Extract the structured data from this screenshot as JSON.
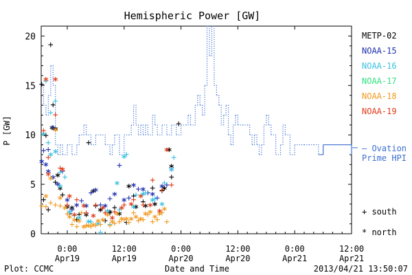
{
  "chart_data": {
    "type": "scatter",
    "title": "Hemispheric Power [GW]",
    "ylabel": "P [GW]",
    "xlabel": "Date and Time",
    "ylim": [
      0,
      21
    ],
    "yticks": [
      0,
      5,
      10,
      15,
      20
    ],
    "x_unit": "hours since 2013-04-18 00:00 UT",
    "xlim": [
      18.5,
      84
    ],
    "xticks": [
      {
        "x": 24,
        "time": "0:00",
        "date": "Apr19"
      },
      {
        "x": 36,
        "time": "12:00",
        "date": "Apr19"
      },
      {
        "x": 48,
        "time": "0:00",
        "date": "Apr20"
      },
      {
        "x": 60,
        "time": "12:00",
        "date": "Apr20"
      },
      {
        "x": 72,
        "time": "0:00",
        "date": "Apr21"
      },
      {
        "x": 84,
        "time": "12:00",
        "date": "Apr21"
      }
    ],
    "series": [
      {
        "name": "METP-02",
        "color": "#000000",
        "south": [
          [
            18.6,
            15.2
          ],
          [
            19.5,
            10.0
          ],
          [
            20.5,
            19.2
          ],
          [
            21.0,
            13.1
          ],
          [
            19.0,
            3.5
          ],
          [
            20.0,
            2.5
          ],
          [
            21.5,
            5.3
          ],
          [
            23.0,
            4.0
          ],
          [
            24.5,
            2.1
          ],
          [
            26.5,
            2.0
          ],
          [
            28.5,
            9.3
          ],
          [
            30.0,
            2.9
          ],
          [
            32.0,
            1.4
          ],
          [
            34.0,
            2.7
          ],
          [
            36.5,
            1.2
          ],
          [
            38.0,
            3.9
          ],
          [
            40.0,
            3.3
          ],
          [
            42.0,
            4.7
          ],
          [
            44.0,
            4.4
          ],
          [
            46.0,
            5.8
          ],
          [
            47.5,
            11.2
          ],
          [
            26.0,
            1.5
          ],
          [
            33.0,
            2.2
          ]
        ],
        "north": [
          [
            20.8,
            10.7
          ],
          [
            21.5,
            10.6
          ],
          [
            22.0,
            5.9
          ],
          [
            22.5,
            4.6
          ],
          [
            24.0,
            2.7
          ],
          [
            25.0,
            2.6
          ],
          [
            28.0,
            1.9
          ],
          [
            29.5,
            4.3
          ],
          [
            31.0,
            2.4
          ],
          [
            33.0,
            2.2
          ],
          [
            35.0,
            2.0
          ],
          [
            37.0,
            4.8
          ],
          [
            38.5,
            2.7
          ],
          [
            40.5,
            2.8
          ],
          [
            42.5,
            3.0
          ],
          [
            44.5,
            4.6
          ],
          [
            45.5,
            8.5
          ],
          [
            46.0,
            6.8
          ]
        ]
      },
      {
        "name": "NOAA-15",
        "color": "#1e30b0",
        "south": [
          [
            19.0,
            8.5
          ],
          [
            20.0,
            8.6
          ],
          [
            21.0,
            10.8
          ],
          [
            23.0,
            6.4
          ],
          [
            25.0,
            2.5
          ],
          [
            27.0,
            3.4
          ],
          [
            29.0,
            4.2
          ],
          [
            31.0,
            3.0
          ],
          [
            33.0,
            3.6
          ],
          [
            35.0,
            7.0
          ],
          [
            37.0,
            3.7
          ],
          [
            39.0,
            4.6
          ],
          [
            41.0,
            4.2
          ],
          [
            43.0,
            3.7
          ],
          [
            45.0,
            5.0
          ]
        ],
        "north": [
          [
            18.6,
            7.3
          ],
          [
            19.5,
            7.0
          ],
          [
            20.0,
            6.3
          ],
          [
            21.0,
            5.7
          ],
          [
            22.0,
            5.0
          ],
          [
            24.0,
            3.4
          ],
          [
            26.0,
            2.9
          ],
          [
            28.0,
            2.8
          ],
          [
            30.0,
            4.4
          ],
          [
            32.0,
            2.8
          ],
          [
            34.0,
            4.0
          ],
          [
            36.0,
            3.4
          ],
          [
            38.0,
            4.9
          ],
          [
            40.0,
            4.5
          ],
          [
            42.0,
            4.0
          ],
          [
            44.0,
            4.8
          ],
          [
            46.0,
            6.5
          ]
        ]
      },
      {
        "name": "NOAA-16",
        "color": "#3ac0e0",
        "south": [
          [
            19.5,
            15.5
          ],
          [
            20.5,
            12.3
          ],
          [
            21.5,
            13.5
          ],
          [
            20.0,
            9.3
          ],
          [
            22.5,
            6.3
          ],
          [
            23.5,
            5.8
          ],
          [
            25.5,
            1.9
          ],
          [
            27.5,
            3.0
          ],
          [
            29.0,
            1.3
          ],
          [
            31.0,
            0.2
          ],
          [
            33.0,
            1.0
          ],
          [
            35.0,
            2.5
          ],
          [
            36.5,
            8.1
          ],
          [
            38.5,
            4.0
          ],
          [
            40.5,
            4.2
          ],
          [
            42.5,
            3.6
          ],
          [
            44.5,
            5.2
          ],
          [
            46.5,
            7.8
          ]
        ],
        "north": [
          [
            19.0,
            10.1
          ],
          [
            20.5,
            8.0
          ],
          [
            21.5,
            8.3
          ],
          [
            22.5,
            4.8
          ],
          [
            24.5,
            2.2
          ],
          [
            26.5,
            1.6
          ],
          [
            28.5,
            1.2
          ],
          [
            30.5,
            1.0
          ],
          [
            32.5,
            2.3
          ],
          [
            34.5,
            5.1
          ],
          [
            36.0,
            7.8
          ],
          [
            38.0,
            2.7
          ],
          [
            40.0,
            4.0
          ],
          [
            42.0,
            3.4
          ],
          [
            44.0,
            3.0
          ],
          [
            46.0,
            6.5
          ]
        ]
      },
      {
        "name": "NOAA-17",
        "color": "#30e080",
        "south": [],
        "north": []
      },
      {
        "name": "NOAA-18",
        "color": "#f09a20",
        "south": [
          [
            18.6,
            2.9
          ],
          [
            19.5,
            2.8
          ],
          [
            20.5,
            3.2
          ],
          [
            21.5,
            3.0
          ],
          [
            22.5,
            2.9
          ],
          [
            24.0,
            2.1
          ],
          [
            25.0,
            1.0
          ],
          [
            26.0,
            0.8
          ],
          [
            27.0,
            2.2
          ],
          [
            28.0,
            0.9
          ],
          [
            29.0,
            0.8
          ],
          [
            30.0,
            0.9
          ],
          [
            31.0,
            1.0
          ],
          [
            32.0,
            2.2
          ],
          [
            33.0,
            0.9
          ],
          [
            34.0,
            1.1
          ],
          [
            35.0,
            1.3
          ],
          [
            36.0,
            1.5
          ],
          [
            37.0,
            1.2
          ],
          [
            38.0,
            2.2
          ],
          [
            39.0,
            1.4
          ],
          [
            40.0,
            1.5
          ],
          [
            41.0,
            2.0
          ],
          [
            42.0,
            1.3
          ],
          [
            43.0,
            1.5
          ],
          [
            44.0,
            2.2
          ],
          [
            45.0,
            1.3
          ]
        ],
        "north": [
          [
            19.5,
            3.8
          ],
          [
            20.5,
            5.6
          ],
          [
            21.5,
            10.5
          ],
          [
            22.5,
            3.6
          ],
          [
            23.5,
            2.6
          ],
          [
            24.5,
            1.7
          ],
          [
            25.5,
            1.4
          ],
          [
            26.5,
            1.3
          ],
          [
            27.5,
            0.7
          ],
          [
            28.5,
            0.8
          ],
          [
            29.5,
            0.9
          ],
          [
            30.5,
            1.3
          ],
          [
            31.5,
            1.4
          ],
          [
            32.5,
            1.9
          ],
          [
            33.5,
            1.2
          ],
          [
            34.5,
            2.0
          ],
          [
            35.5,
            1.5
          ],
          [
            36.5,
            1.5
          ],
          [
            37.5,
            1.5
          ],
          [
            38.5,
            1.7
          ],
          [
            39.5,
            1.5
          ],
          [
            40.5,
            2.0
          ],
          [
            41.5,
            2.2
          ],
          [
            42.5,
            1.7
          ],
          [
            43.5,
            2.0
          ],
          [
            44.5,
            2.5
          ]
        ]
      },
      {
        "name": "NOAA-19",
        "color": "#e03a18",
        "south": [
          [
            19.0,
            10.5
          ],
          [
            20.0,
            7.8
          ],
          [
            21.5,
            12.1
          ],
          [
            22.5,
            6.7
          ],
          [
            24.0,
            3.0
          ],
          [
            26.0,
            3.5
          ],
          [
            28.0,
            2.2
          ],
          [
            30.0,
            3.0
          ],
          [
            32.0,
            2.2
          ],
          [
            34.0,
            2.3
          ],
          [
            36.0,
            3.0
          ],
          [
            38.0,
            3.5
          ],
          [
            40.0,
            3.0
          ],
          [
            42.0,
            5.5
          ],
          [
            44.0,
            4.5
          ],
          [
            46.0,
            5.0
          ]
        ],
        "north": [
          [
            19.5,
            15.6
          ],
          [
            20.0,
            6.0
          ],
          [
            21.5,
            15.6
          ],
          [
            23.0,
            6.5
          ],
          [
            24.5,
            3.8
          ],
          [
            25.5,
            1.9
          ],
          [
            27.5,
            2.8
          ],
          [
            29.5,
            1.8
          ],
          [
            31.5,
            2.6
          ],
          [
            33.5,
            1.6
          ],
          [
            35.5,
            2.6
          ],
          [
            37.5,
            3.0
          ],
          [
            39.5,
            3.8
          ],
          [
            41.5,
            2.9
          ],
          [
            43.5,
            2.3
          ],
          [
            45.0,
            8.5
          ]
        ]
      }
    ],
    "ovation": {
      "name": "Ovation Prime HPI",
      "color": "#3a6ed0",
      "legend_text_1": "– Ovation",
      "legend_text_2": "Prime HPI",
      "dotted_until": 77,
      "steps": [
        [
          18.5,
          15
        ],
        [
          19,
          13
        ],
        [
          19.5,
          12
        ],
        [
          20,
          14
        ],
        [
          20.5,
          17
        ],
        [
          21,
          15
        ],
        [
          21.5,
          9
        ],
        [
          22,
          8
        ],
        [
          22.5,
          9
        ],
        [
          23,
          8
        ],
        [
          24,
          9
        ],
        [
          25,
          8
        ],
        [
          26,
          9
        ],
        [
          26.5,
          10
        ],
        [
          27,
          10
        ],
        [
          27.5,
          11
        ],
        [
          28,
          10
        ],
        [
          29,
          9
        ],
        [
          30,
          10
        ],
        [
          31,
          10
        ],
        [
          32,
          9
        ],
        [
          33,
          8
        ],
        [
          33.5,
          9
        ],
        [
          34,
          10
        ],
        [
          35,
          8
        ],
        [
          36,
          10
        ],
        [
          37,
          10
        ],
        [
          37.5,
          11
        ],
        [
          38,
          13
        ],
        [
          38.5,
          11
        ],
        [
          39,
          10
        ],
        [
          39.5,
          11
        ],
        [
          40,
          10
        ],
        [
          40.5,
          11
        ],
        [
          41,
          10
        ],
        [
          42,
          12
        ],
        [
          42.5,
          11
        ],
        [
          43,
          10
        ],
        [
          44,
          11
        ],
        [
          45,
          10
        ],
        [
          46,
          11
        ],
        [
          47,
          10
        ],
        [
          48,
          11
        ],
        [
          49,
          11
        ],
        [
          49.5,
          12
        ],
        [
          50,
          11
        ],
        [
          51,
          13
        ],
        [
          51.5,
          14
        ],
        [
          52,
          13
        ],
        [
          52.5,
          12
        ],
        [
          53,
          15
        ],
        [
          53.5,
          21
        ],
        [
          54,
          18
        ],
        [
          54.5,
          21
        ],
        [
          55,
          15
        ],
        [
          55.5,
          14
        ],
        [
          56,
          13
        ],
        [
          56.5,
          11
        ],
        [
          57,
          12
        ],
        [
          57.5,
          13
        ],
        [
          58,
          10
        ],
        [
          58.5,
          9
        ],
        [
          59,
          11
        ],
        [
          59.5,
          12
        ],
        [
          60,
          11
        ],
        [
          61,
          11
        ],
        [
          62,
          11
        ],
        [
          62.5,
          10
        ],
        [
          63,
          9
        ],
        [
          63.5,
          10
        ],
        [
          64,
          9
        ],
        [
          64.5,
          8
        ],
        [
          65,
          9
        ],
        [
          65.5,
          11
        ],
        [
          66,
          12
        ],
        [
          66.5,
          11
        ],
        [
          67,
          10
        ],
        [
          68,
          8
        ],
        [
          69,
          9
        ],
        [
          69.5,
          11
        ],
        [
          70,
          10
        ],
        [
          71,
          8
        ],
        [
          72,
          9
        ],
        [
          74,
          9
        ],
        [
          75,
          9
        ],
        [
          76,
          9
        ],
        [
          77,
          8
        ],
        [
          78,
          9
        ],
        [
          80,
          9
        ],
        [
          82,
          9
        ],
        [
          84,
          8
        ]
      ]
    },
    "legend": {
      "placement": "right",
      "symbols": [
        {
          "sym": "+",
          "label": "south"
        },
        {
          "sym": "*",
          "label": "north"
        }
      ]
    }
  },
  "footer": {
    "left": "Plot: CCMC",
    "center": "Date and Time",
    "right": "2013/04/21 13:50:07"
  }
}
